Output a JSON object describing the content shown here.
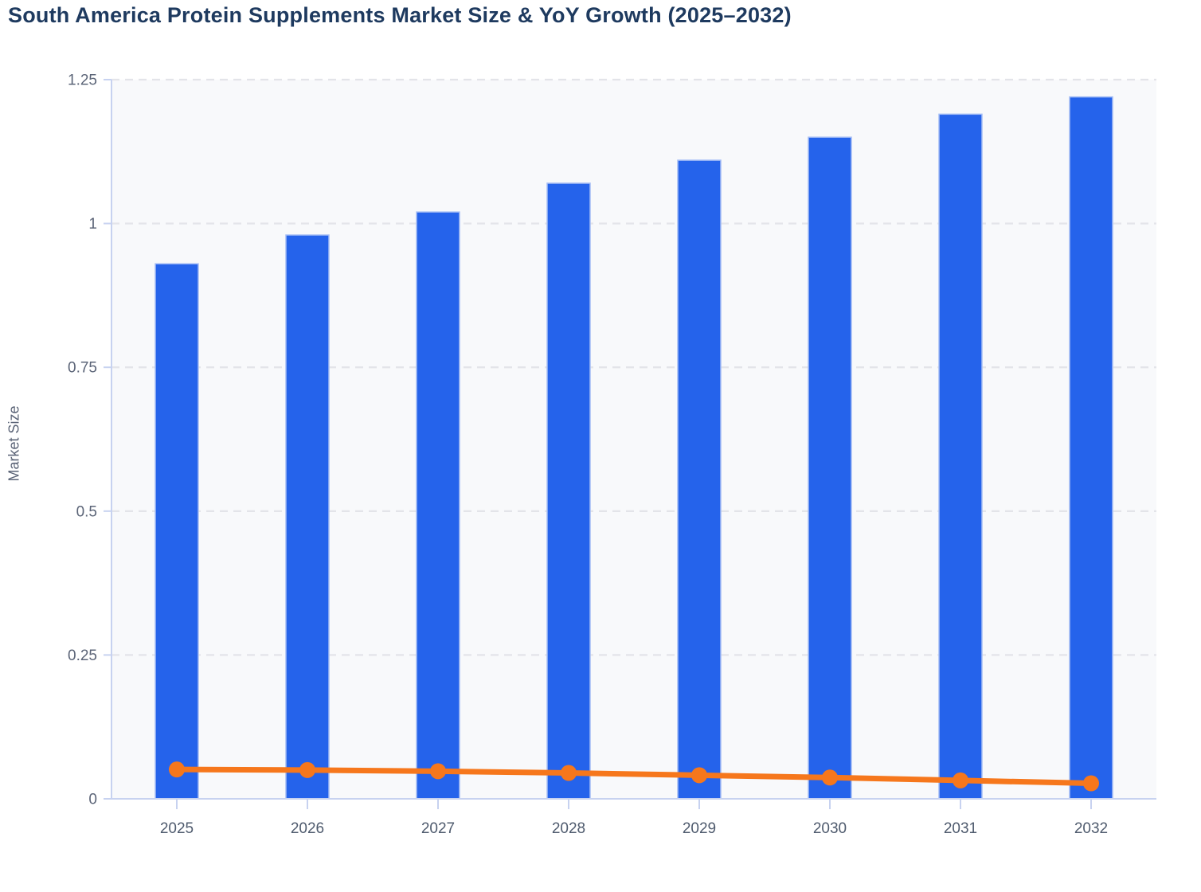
{
  "chart_data": {
    "type": "bar",
    "title": "South America Protein Supplements Market Size & YoY Growth (2025–2032)",
    "xlabel": "",
    "ylabel": "Market Size",
    "categories": [
      "2025",
      "2026",
      "2027",
      "2028",
      "2029",
      "2030",
      "2031",
      "2032"
    ],
    "series": [
      {
        "name": "Market Size",
        "type": "bar",
        "color": "#2563EB",
        "values": [
          0.93,
          0.98,
          1.02,
          1.07,
          1.11,
          1.15,
          1.19,
          1.22
        ]
      },
      {
        "name": "YoY Growth",
        "type": "line",
        "color": "#F6771C",
        "values": [
          0.051,
          0.05,
          0.048,
          0.045,
          0.041,
          0.037,
          0.032,
          0.027
        ]
      }
    ],
    "ylim": [
      0,
      1.25
    ],
    "y_ticks": [
      0,
      0.25,
      0.5,
      0.75,
      1,
      1.25
    ],
    "y_tick_labels": [
      "0",
      "0.25",
      "0.5",
      "0.75",
      "1",
      "1.25"
    ],
    "grid": "horizontal-dashed",
    "legend": "none"
  },
  "style": {
    "bar_color": "#2563EB",
    "bar_border": "#A6BEF5",
    "line_color": "#F6771C",
    "plot_bg": "#F8F9FB",
    "axis_color": "#C7D2F0",
    "grid_color": "#E3E4E9",
    "y_tick_label_color": "#5B6477",
    "x_tick_label_color": "#4F5B6E",
    "title_color": "#1E3A5F"
  }
}
